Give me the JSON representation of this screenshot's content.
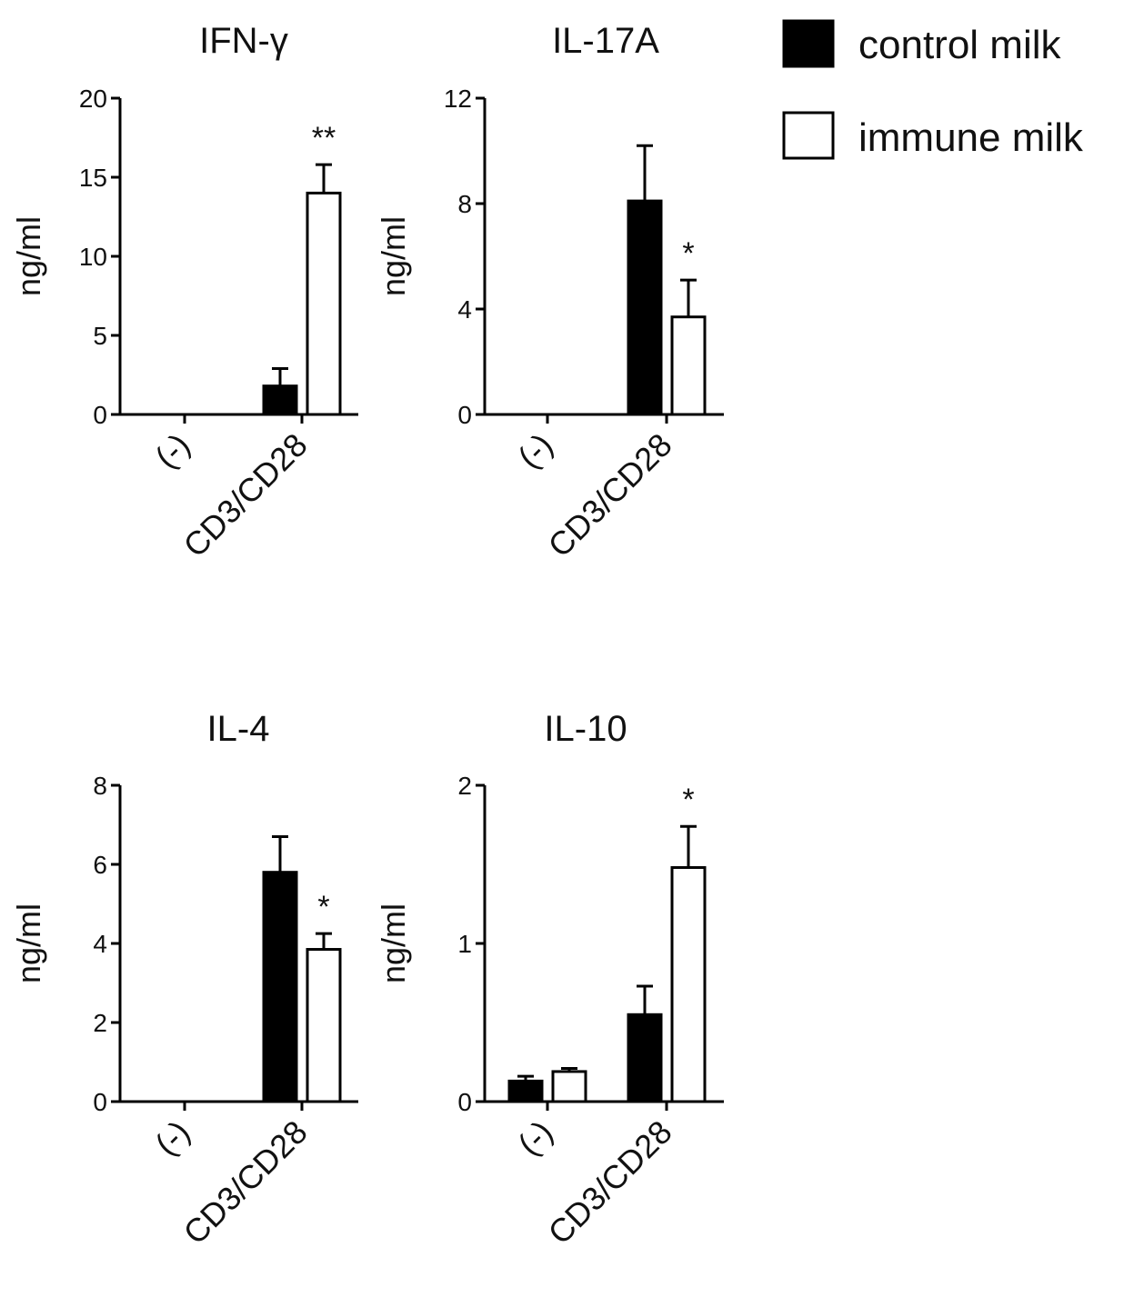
{
  "legend": [
    {
      "name": "control milk",
      "color": "#000000",
      "fill": "filled"
    },
    {
      "name": "immune milk",
      "color": "#ffffff",
      "fill": "outline"
    }
  ],
  "chart_data": [
    {
      "type": "bar",
      "title": "IFN-γ",
      "ylabel": "ng/ml",
      "ylim": [
        0,
        20
      ],
      "yticks": [
        0,
        5,
        10,
        15,
        20
      ],
      "categories": [
        "(-)",
        "CD3/CD28"
      ],
      "series": [
        {
          "name": "control milk",
          "values": [
            0,
            1.8
          ],
          "errors": [
            0,
            1.1
          ]
        },
        {
          "name": "immune milk",
          "values": [
            0,
            14
          ],
          "errors": [
            0,
            1.8
          ]
        }
      ],
      "annotations": [
        {
          "category": "CD3/CD28",
          "text": "**"
        }
      ]
    },
    {
      "type": "bar",
      "title": "IL-17A",
      "ylabel": "ng/ml",
      "ylim": [
        0,
        12
      ],
      "yticks": [
        0,
        4,
        8,
        12
      ],
      "categories": [
        "(-)",
        "CD3/CD28"
      ],
      "series": [
        {
          "name": "control milk",
          "values": [
            0,
            8.1
          ],
          "errors": [
            0,
            2.1
          ]
        },
        {
          "name": "immune milk",
          "values": [
            0,
            3.7
          ],
          "errors": [
            0,
            1.4
          ]
        }
      ],
      "annotations": [
        {
          "category": "CD3/CD28",
          "text": "*"
        }
      ]
    },
    {
      "type": "bar",
      "title": "IL-4",
      "ylabel": "ng/ml",
      "ylim": [
        0,
        8
      ],
      "yticks": [
        0,
        2,
        4,
        6,
        8
      ],
      "categories": [
        "(-)",
        "CD3/CD28"
      ],
      "series": [
        {
          "name": "control milk",
          "values": [
            0,
            5.8
          ],
          "errors": [
            0,
            0.9
          ]
        },
        {
          "name": "immune milk",
          "values": [
            0,
            3.85
          ],
          "errors": [
            0,
            0.4
          ]
        }
      ],
      "annotations": [
        {
          "category": "CD3/CD28",
          "text": "*"
        }
      ]
    },
    {
      "type": "bar",
      "title": "IL-10",
      "ylabel": "ng/ml",
      "ylim": [
        0,
        2
      ],
      "yticks": [
        0,
        1,
        2
      ],
      "categories": [
        "(-)",
        "CD3/CD28"
      ],
      "series": [
        {
          "name": "control milk",
          "values": [
            0.13,
            0.55
          ],
          "errors": [
            0.03,
            0.18
          ]
        },
        {
          "name": "immune milk",
          "values": [
            0.19,
            1.48
          ],
          "errors": [
            0.02,
            0.26
          ]
        }
      ],
      "annotations": [
        {
          "category": "CD3/CD28",
          "text": "*"
        }
      ]
    }
  ]
}
